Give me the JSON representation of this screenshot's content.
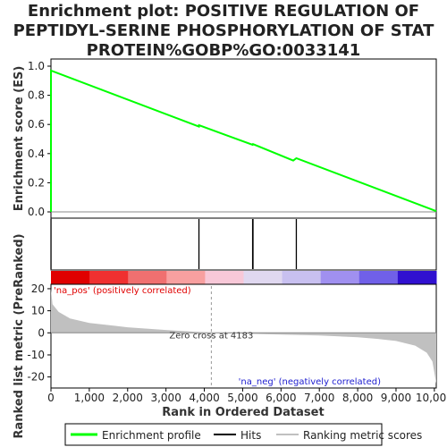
{
  "chart_data": {
    "type": "line",
    "title_lines": [
      "Enrichment plot: POSITIVE REGULATION OF",
      "PEPTIDYL-SERINE PHOSPHORYLATION OF STAT",
      "PROTEIN%GOBP%GO:0033141"
    ],
    "es_panel": {
      "ylabel": "Enrichment score (ES)",
      "ylim": [
        0,
        1.0
      ],
      "yticks": [
        "0.0",
        "0.2",
        "0.4",
        "0.6",
        "0.8",
        "1.0"
      ],
      "series": {
        "name": "Enrichment profile",
        "color": "#00ff00",
        "points": [
          [
            0,
            0.0
          ],
          [
            1,
            0.97
          ],
          [
            3860,
            0.585
          ],
          [
            3861,
            0.595
          ],
          [
            5260,
            0.46
          ],
          [
            5270,
            0.465
          ],
          [
            6320,
            0.352
          ],
          [
            6400,
            0.368
          ],
          [
            10050,
            0.005
          ]
        ]
      }
    },
    "hits": {
      "positions": [
        1,
        3860,
        5260,
        5270,
        6400
      ]
    },
    "rank_panel": {
      "ylabel": "Ranked list metric (PreRanked)",
      "xlabel": "Rank in Ordered Dataset",
      "xlim": [
        0,
        10050
      ],
      "ylim": [
        -25,
        22
      ],
      "yticks": [
        "-20",
        "-10",
        "0",
        "10",
        "20"
      ],
      "xticks": [
        0,
        1000,
        2000,
        3000,
        4000,
        5000,
        6000,
        7000,
        8000,
        9000,
        10000
      ],
      "xtick_labels": [
        "0",
        "1,000",
        "2,000",
        "3,000",
        "4,000",
        "5,000",
        "6,000",
        "7,000",
        "8,000",
        "9,000",
        "10,000"
      ],
      "zero_cross": 4183,
      "zero_cross_label": "Zero cross at 4183",
      "pos_label": "'na_pos' (positively correlated)",
      "neg_label": "'na_neg' (negatively correlated)",
      "metric_curve": [
        [
          0,
          20
        ],
        [
          40,
          13
        ],
        [
          200,
          9.5
        ],
        [
          500,
          6.5
        ],
        [
          1000,
          4.5
        ],
        [
          2000,
          2.5
        ],
        [
          3000,
          1.3
        ],
        [
          4183,
          0
        ],
        [
          5000,
          -0.4
        ],
        [
          6000,
          -0.8
        ],
        [
          7000,
          -1.2
        ],
        [
          8000,
          -2.0
        ],
        [
          8500,
          -2.7
        ],
        [
          9000,
          -3.7
        ],
        [
          9500,
          -5.8
        ],
        [
          9800,
          -9.0
        ],
        [
          9950,
          -13
        ],
        [
          10050,
          -23
        ]
      ]
    },
    "color_bar": [
      "#e00000",
      "#f03030",
      "#f07070",
      "#f8a0a0",
      "#f8c8d8",
      "#e0d8f0",
      "#c8c0f0",
      "#a090f0",
      "#7060e8",
      "#3010d0"
    ],
    "legend": [
      {
        "label": "Enrichment profile",
        "color": "#00ff00"
      },
      {
        "label": "Hits",
        "color": "#000000"
      },
      {
        "label": "Ranking metric scores",
        "color": "#c0c0c0"
      }
    ]
  }
}
